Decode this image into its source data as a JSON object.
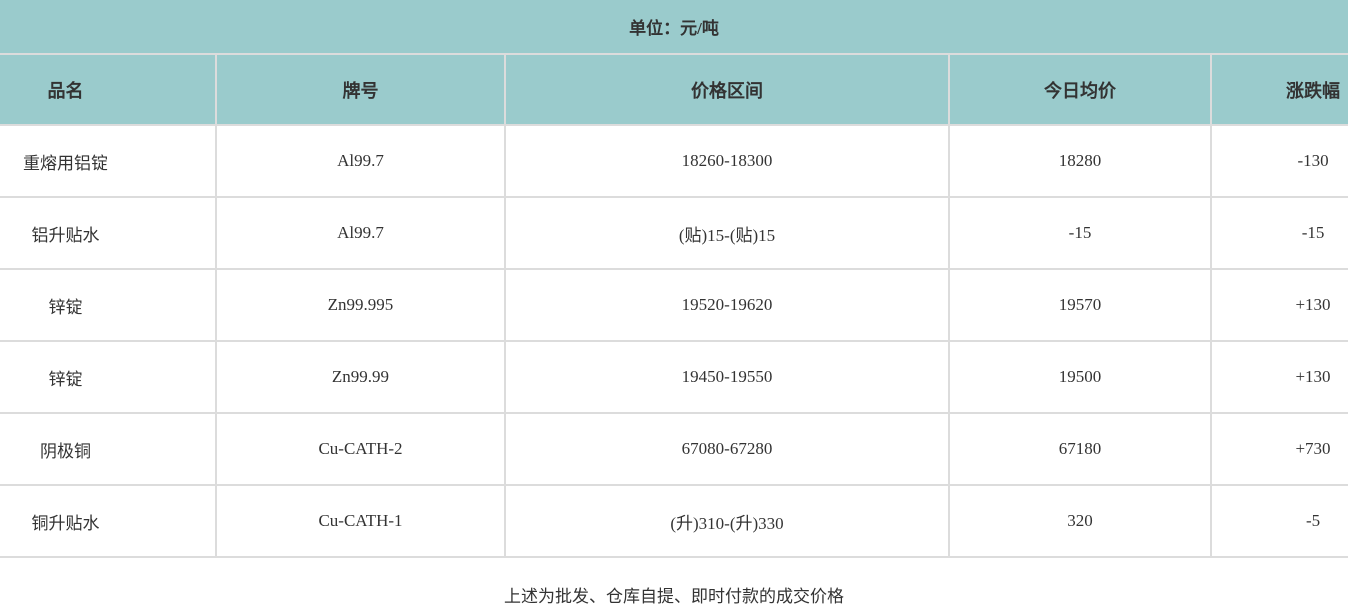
{
  "unit_label": "单位：元/吨",
  "columns": [
    "品名",
    "牌号",
    "价格区间",
    "今日均价",
    "涨跌幅"
  ],
  "rows": [
    {
      "name": "重熔用铝锭",
      "grade": "Al99.7",
      "range": "18260-18300",
      "avg": "18280",
      "change": "-130"
    },
    {
      "name": "铝升贴水",
      "grade": "Al99.7",
      "range": "(贴)15-(贴)15",
      "avg": "-15",
      "change": "-15"
    },
    {
      "name": "锌锭",
      "grade": "Zn99.995",
      "range": "19520-19620",
      "avg": "19570",
      "change": "+130"
    },
    {
      "name": "锌锭",
      "grade": "Zn99.99",
      "range": "19450-19550",
      "avg": "19500",
      "change": "+130"
    },
    {
      "name": "阴极铜",
      "grade": "Cu-CATH-2",
      "range": "67080-67280",
      "avg": "67180",
      "change": "+730"
    },
    {
      "name": "铜升贴水",
      "grade": "Cu-CATH-1",
      "range": "(升)310-(升)330",
      "avg": "320",
      "change": "-5"
    }
  ],
  "footer_note": "上述为批发、仓库自提、即时付款的成交价格",
  "colors": {
    "header_bg": "#9acbcc",
    "border": "#dcdcdc",
    "text": "#333333"
  }
}
